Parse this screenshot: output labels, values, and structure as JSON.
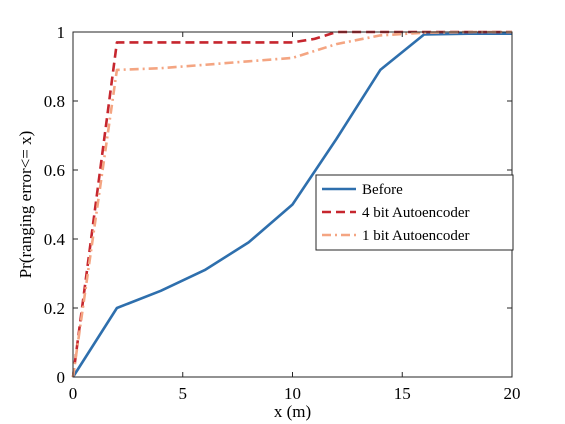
{
  "chart_data": {
    "type": "line",
    "title": "",
    "xlabel": "x (m)",
    "ylabel": "Pr(ranging error<= x)",
    "xlim": [
      0,
      20
    ],
    "ylim": [
      0,
      1
    ],
    "xticks": [
      0,
      5,
      10,
      15,
      20
    ],
    "xtick_labels": [
      "0",
      "5",
      "10",
      "15",
      "20"
    ],
    "yticks": [
      0,
      0.2,
      0.4,
      0.6,
      0.8,
      1
    ],
    "ytick_labels": [
      "0",
      "0.2",
      "0.4",
      "0.6",
      "0.8",
      "1"
    ],
    "grid": false,
    "legend_position": "center-right",
    "series": [
      {
        "name": "Before",
        "color": "#2e6fad",
        "style": "solid",
        "x": [
          0,
          2,
          4,
          6,
          8,
          10,
          12,
          14,
          16,
          18,
          20
        ],
        "y": [
          0,
          0.2,
          0.25,
          0.31,
          0.39,
          0.5,
          0.69,
          0.89,
          0.993,
          0.995,
          0.995
        ]
      },
      {
        "name": "4 bit Autoencoder",
        "color": "#c6262e",
        "style": "dashed",
        "x": [
          0,
          2,
          4,
          6,
          8,
          10,
          11,
          12,
          14,
          16,
          18,
          20
        ],
        "y": [
          0,
          0.97,
          0.97,
          0.97,
          0.97,
          0.97,
          0.98,
          1,
          1,
          1,
          1,
          1
        ]
      },
      {
        "name": "1 bit Autoencoder",
        "color": "#f4a582",
        "style": "dashdot",
        "x": [
          0,
          2,
          4,
          6,
          8,
          10,
          12,
          14,
          16,
          18,
          20
        ],
        "y": [
          0,
          0.89,
          0.895,
          0.905,
          0.915,
          0.925,
          0.965,
          0.99,
          0.998,
          1,
          1
        ]
      }
    ]
  }
}
